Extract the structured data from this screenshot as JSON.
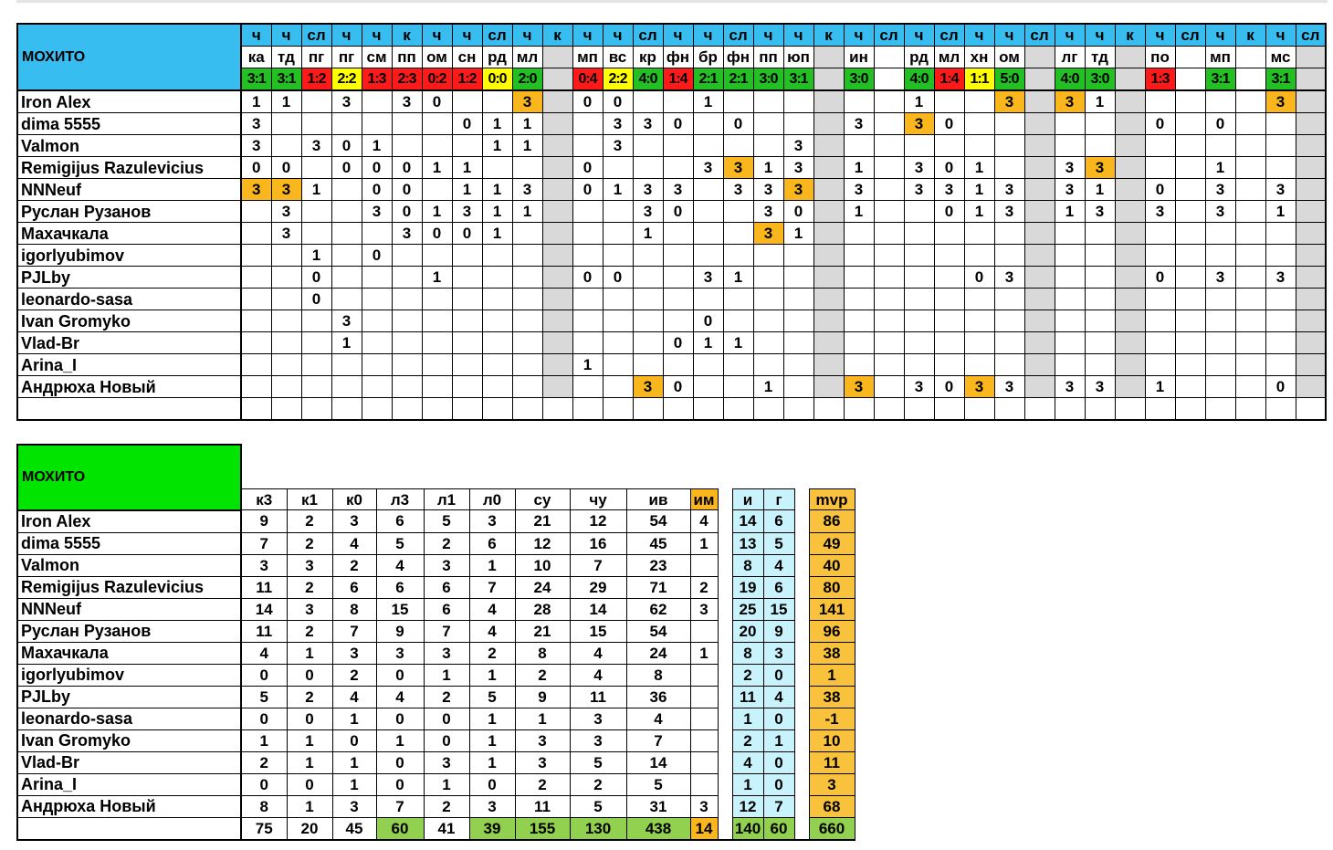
{
  "team": "МОХИТО",
  "matches": {
    "types": [
      "ч",
      "ч",
      "сл",
      "ч",
      "ч",
      "к",
      "ч",
      "ч",
      "сл",
      "ч",
      "к",
      "ч",
      "ч",
      "сл",
      "ч",
      "ч",
      "сл",
      "ч",
      "ч",
      "к",
      "ч",
      "сл",
      "ч",
      "сл",
      "ч",
      "ч",
      "сл",
      "ч",
      "ч",
      "к",
      "ч",
      "сл",
      "ч",
      "к",
      "ч",
      "сл"
    ],
    "opponents": [
      "ка",
      "тд",
      "пг",
      "пг",
      "см",
      "пп",
      "ом",
      "сн",
      "рд",
      "мл",
      "",
      "мп",
      "вс",
      "кр",
      "фн",
      "бр",
      "фн",
      "пп",
      "юп",
      "",
      "ин",
      "",
      "рд",
      "мл",
      "хн",
      "ом",
      "",
      "лг",
      "тд",
      "",
      "по",
      "",
      "мп",
      "",
      "мс",
      ""
    ],
    "scores": [
      "3:1",
      "3:1",
      "1:2",
      "2:2",
      "1:3",
      "2:3",
      "0:2",
      "1:2",
      "0:0",
      "2:0",
      "",
      "0:4",
      "2:2",
      "4:0",
      "1:4",
      "2:1",
      "2:1",
      "3:0",
      "3:1",
      "",
      "3:0",
      "",
      "4:0",
      "1:4",
      "1:1",
      "5:0",
      "",
      "4:0",
      "3:0",
      "",
      "1:3",
      "",
      "3:1",
      "",
      "3:1",
      ""
    ],
    "score_colors": [
      "g",
      "g",
      "r",
      "y",
      "r",
      "r",
      "r",
      "r",
      "y",
      "g",
      "",
      "r",
      "y",
      "g",
      "r",
      "g",
      "g",
      "g",
      "g",
      "",
      "g",
      "",
      "g",
      "r",
      "y",
      "g",
      "",
      "g",
      "g",
      "",
      "r",
      "",
      "g",
      "",
      "g",
      ""
    ],
    "gray_columns": [
      10,
      19,
      26,
      29,
      35
    ]
  },
  "players": [
    {
      "name": "Iron Alex",
      "points": {
        "0": "1",
        "1": "1",
        "3": "3",
        "5": "3",
        "6": "0",
        "9": "3",
        "11": "0",
        "12": "0",
        "15": "1",
        "22": "1",
        "25": "3",
        "27": "3",
        "28": "1",
        "34": "3"
      },
      "highlights": [
        9,
        25,
        27,
        34
      ]
    },
    {
      "name": "dima 5555",
      "points": {
        "0": "3",
        "7": "0",
        "8": "1",
        "9": "1",
        "12": "3",
        "13": "3",
        "14": "0",
        "16": "0",
        "20": "3",
        "22": "3",
        "23": "0",
        "30": "0",
        "32": "0"
      },
      "highlights": [
        22
      ]
    },
    {
      "name": "Valmon",
      "points": {
        "0": "3",
        "2": "3",
        "3": "0",
        "4": "1",
        "8": "1",
        "9": "1",
        "12": "3",
        "18": "3"
      },
      "highlights": []
    },
    {
      "name": "Remigijus Razulevicius",
      "points": {
        "0": "0",
        "1": "0",
        "3": "0",
        "4": "0",
        "5": "0",
        "6": "1",
        "7": "1",
        "11": "0",
        "15": "3",
        "16": "3",
        "17": "1",
        "18": "3",
        "20": "1",
        "22": "3",
        "23": "0",
        "24": "1",
        "27": "3",
        "28": "3",
        "32": "1"
      },
      "highlights": [
        16,
        28
      ]
    },
    {
      "name": "NNNeuf",
      "points": {
        "0": "3",
        "1": "3",
        "2": "1",
        "4": "0",
        "5": "0",
        "7": "1",
        "8": "1",
        "9": "3",
        "11": "0",
        "12": "1",
        "13": "3",
        "14": "3",
        "16": "3",
        "17": "3",
        "18": "3",
        "20": "3",
        "22": "3",
        "23": "3",
        "24": "1",
        "25": "3",
        "27": "3",
        "28": "1",
        "30": "0",
        "32": "3",
        "34": "3"
      },
      "highlights": [
        0,
        1,
        18
      ]
    },
    {
      "name": "Руслан Рузанов",
      "points": {
        "1": "3",
        "4": "3",
        "5": "0",
        "6": "1",
        "7": "3",
        "8": "1",
        "9": "1",
        "13": "3",
        "14": "0",
        "17": "3",
        "18": "0",
        "20": "1",
        "23": "0",
        "24": "1",
        "25": "3",
        "27": "1",
        "28": "3",
        "30": "3",
        "32": "3",
        "34": "1"
      },
      "highlights": []
    },
    {
      "name": "Махачкала",
      "points": {
        "1": "3",
        "5": "3",
        "6": "0",
        "7": "0",
        "8": "1",
        "13": "1",
        "17": "3",
        "18": "1"
      },
      "highlights": [
        17
      ]
    },
    {
      "name": "igorlyubimov",
      "points": {
        "2": "1",
        "4": "0"
      },
      "highlights": []
    },
    {
      "name": "PJLby",
      "points": {
        "2": "0",
        "6": "1",
        "11": "0",
        "12": "0",
        "15": "3",
        "16": "1",
        "24": "0",
        "25": "3",
        "30": "0",
        "32": "3",
        "34": "3"
      },
      "highlights": []
    },
    {
      "name": "leonardo-sasa",
      "points": {
        "2": "0"
      },
      "highlights": []
    },
    {
      "name": "Ivan Gromyko",
      "points": {
        "3": "3",
        "15": "0"
      },
      "highlights": []
    },
    {
      "name": "Vlad-Br",
      "points": {
        "3": "1",
        "14": "0",
        "15": "1",
        "16": "1"
      },
      "highlights": []
    },
    {
      "name": "Arina_I",
      "points": {
        "11": "1"
      },
      "highlights": []
    },
    {
      "name": "Андрюха Новый",
      "points": {
        "13": "3",
        "14": "0",
        "17": "1",
        "20": "3",
        "22": "3",
        "23": "0",
        "24": "3",
        "25": "3",
        "27": "3",
        "28": "3",
        "30": "1",
        "34": "0"
      },
      "highlights": [
        13,
        20,
        24
      ]
    }
  ],
  "summary": {
    "headers": [
      "к3",
      "к1",
      "к0",
      "л3",
      "л1",
      "л0",
      "су",
      "чу",
      "ив",
      "им"
    ],
    "mid_headers": [
      "и",
      "г"
    ],
    "mvp_header": "mvp",
    "rows": [
      {
        "name": "Iron Alex",
        "vals": [
          "9",
          "2",
          "3",
          "6",
          "5",
          "3",
          "21",
          "12",
          "54",
          "4"
        ],
        "ig": [
          "14",
          "6"
        ],
        "mvp": "86"
      },
      {
        "name": "dima 5555",
        "vals": [
          "7",
          "2",
          "4",
          "5",
          "2",
          "6",
          "12",
          "16",
          "45",
          "1"
        ],
        "ig": [
          "13",
          "5"
        ],
        "mvp": "49"
      },
      {
        "name": "Valmon",
        "vals": [
          "3",
          "3",
          "2",
          "4",
          "3",
          "1",
          "10",
          "7",
          "23",
          ""
        ],
        "ig": [
          "8",
          "4"
        ],
        "mvp": "40"
      },
      {
        "name": "Remigijus Razulevicius",
        "vals": [
          "11",
          "2",
          "6",
          "6",
          "6",
          "7",
          "24",
          "29",
          "71",
          "2"
        ],
        "ig": [
          "19",
          "6"
        ],
        "mvp": "80"
      },
      {
        "name": "NNNeuf",
        "vals": [
          "14",
          "3",
          "8",
          "15",
          "6",
          "4",
          "28",
          "14",
          "62",
          "3"
        ],
        "ig": [
          "25",
          "15"
        ],
        "mvp": "141"
      },
      {
        "name": "Руслан Рузанов",
        "vals": [
          "11",
          "2",
          "7",
          "9",
          "7",
          "4",
          "21",
          "15",
          "54",
          ""
        ],
        "ig": [
          "20",
          "9"
        ],
        "mvp": "96"
      },
      {
        "name": "Махачкала",
        "vals": [
          "4",
          "1",
          "3",
          "3",
          "3",
          "2",
          "8",
          "4",
          "24",
          "1"
        ],
        "ig": [
          "8",
          "3"
        ],
        "mvp": "38"
      },
      {
        "name": "igorlyubimov",
        "vals": [
          "0",
          "0",
          "2",
          "0",
          "1",
          "1",
          "2",
          "4",
          "8",
          ""
        ],
        "ig": [
          "2",
          "0"
        ],
        "mvp": "1"
      },
      {
        "name": "PJLby",
        "vals": [
          "5",
          "2",
          "4",
          "4",
          "2",
          "5",
          "9",
          "11",
          "36",
          ""
        ],
        "ig": [
          "11",
          "4"
        ],
        "mvp": "38"
      },
      {
        "name": "leonardo-sasa",
        "vals": [
          "0",
          "0",
          "1",
          "0",
          "0",
          "1",
          "1",
          "3",
          "4",
          ""
        ],
        "ig": [
          "1",
          "0"
        ],
        "mvp": "-1"
      },
      {
        "name": "Ivan Gromyko",
        "vals": [
          "1",
          "1",
          "0",
          "1",
          "0",
          "1",
          "3",
          "3",
          "7",
          ""
        ],
        "ig": [
          "2",
          "1"
        ],
        "mvp": "10"
      },
      {
        "name": "Vlad-Br",
        "vals": [
          "2",
          "1",
          "1",
          "0",
          "3",
          "1",
          "3",
          "5",
          "14",
          ""
        ],
        "ig": [
          "4",
          "0"
        ],
        "mvp": "11"
      },
      {
        "name": "Arina_I",
        "vals": [
          "0",
          "0",
          "1",
          "0",
          "1",
          "0",
          "2",
          "2",
          "5",
          ""
        ],
        "ig": [
          "1",
          "0"
        ],
        "mvp": "3"
      },
      {
        "name": "Андрюха Новый",
        "vals": [
          "8",
          "1",
          "3",
          "7",
          "2",
          "3",
          "11",
          "5",
          "31",
          "3"
        ],
        "ig": [
          "12",
          "7"
        ],
        "mvp": "68"
      }
    ],
    "totals": {
      "vals": [
        "75",
        "20",
        "45",
        "60",
        "41",
        "39",
        "155",
        "130",
        "438",
        "14"
      ],
      "ig": [
        "140",
        "60"
      ],
      "mvp": "660"
    }
  }
}
